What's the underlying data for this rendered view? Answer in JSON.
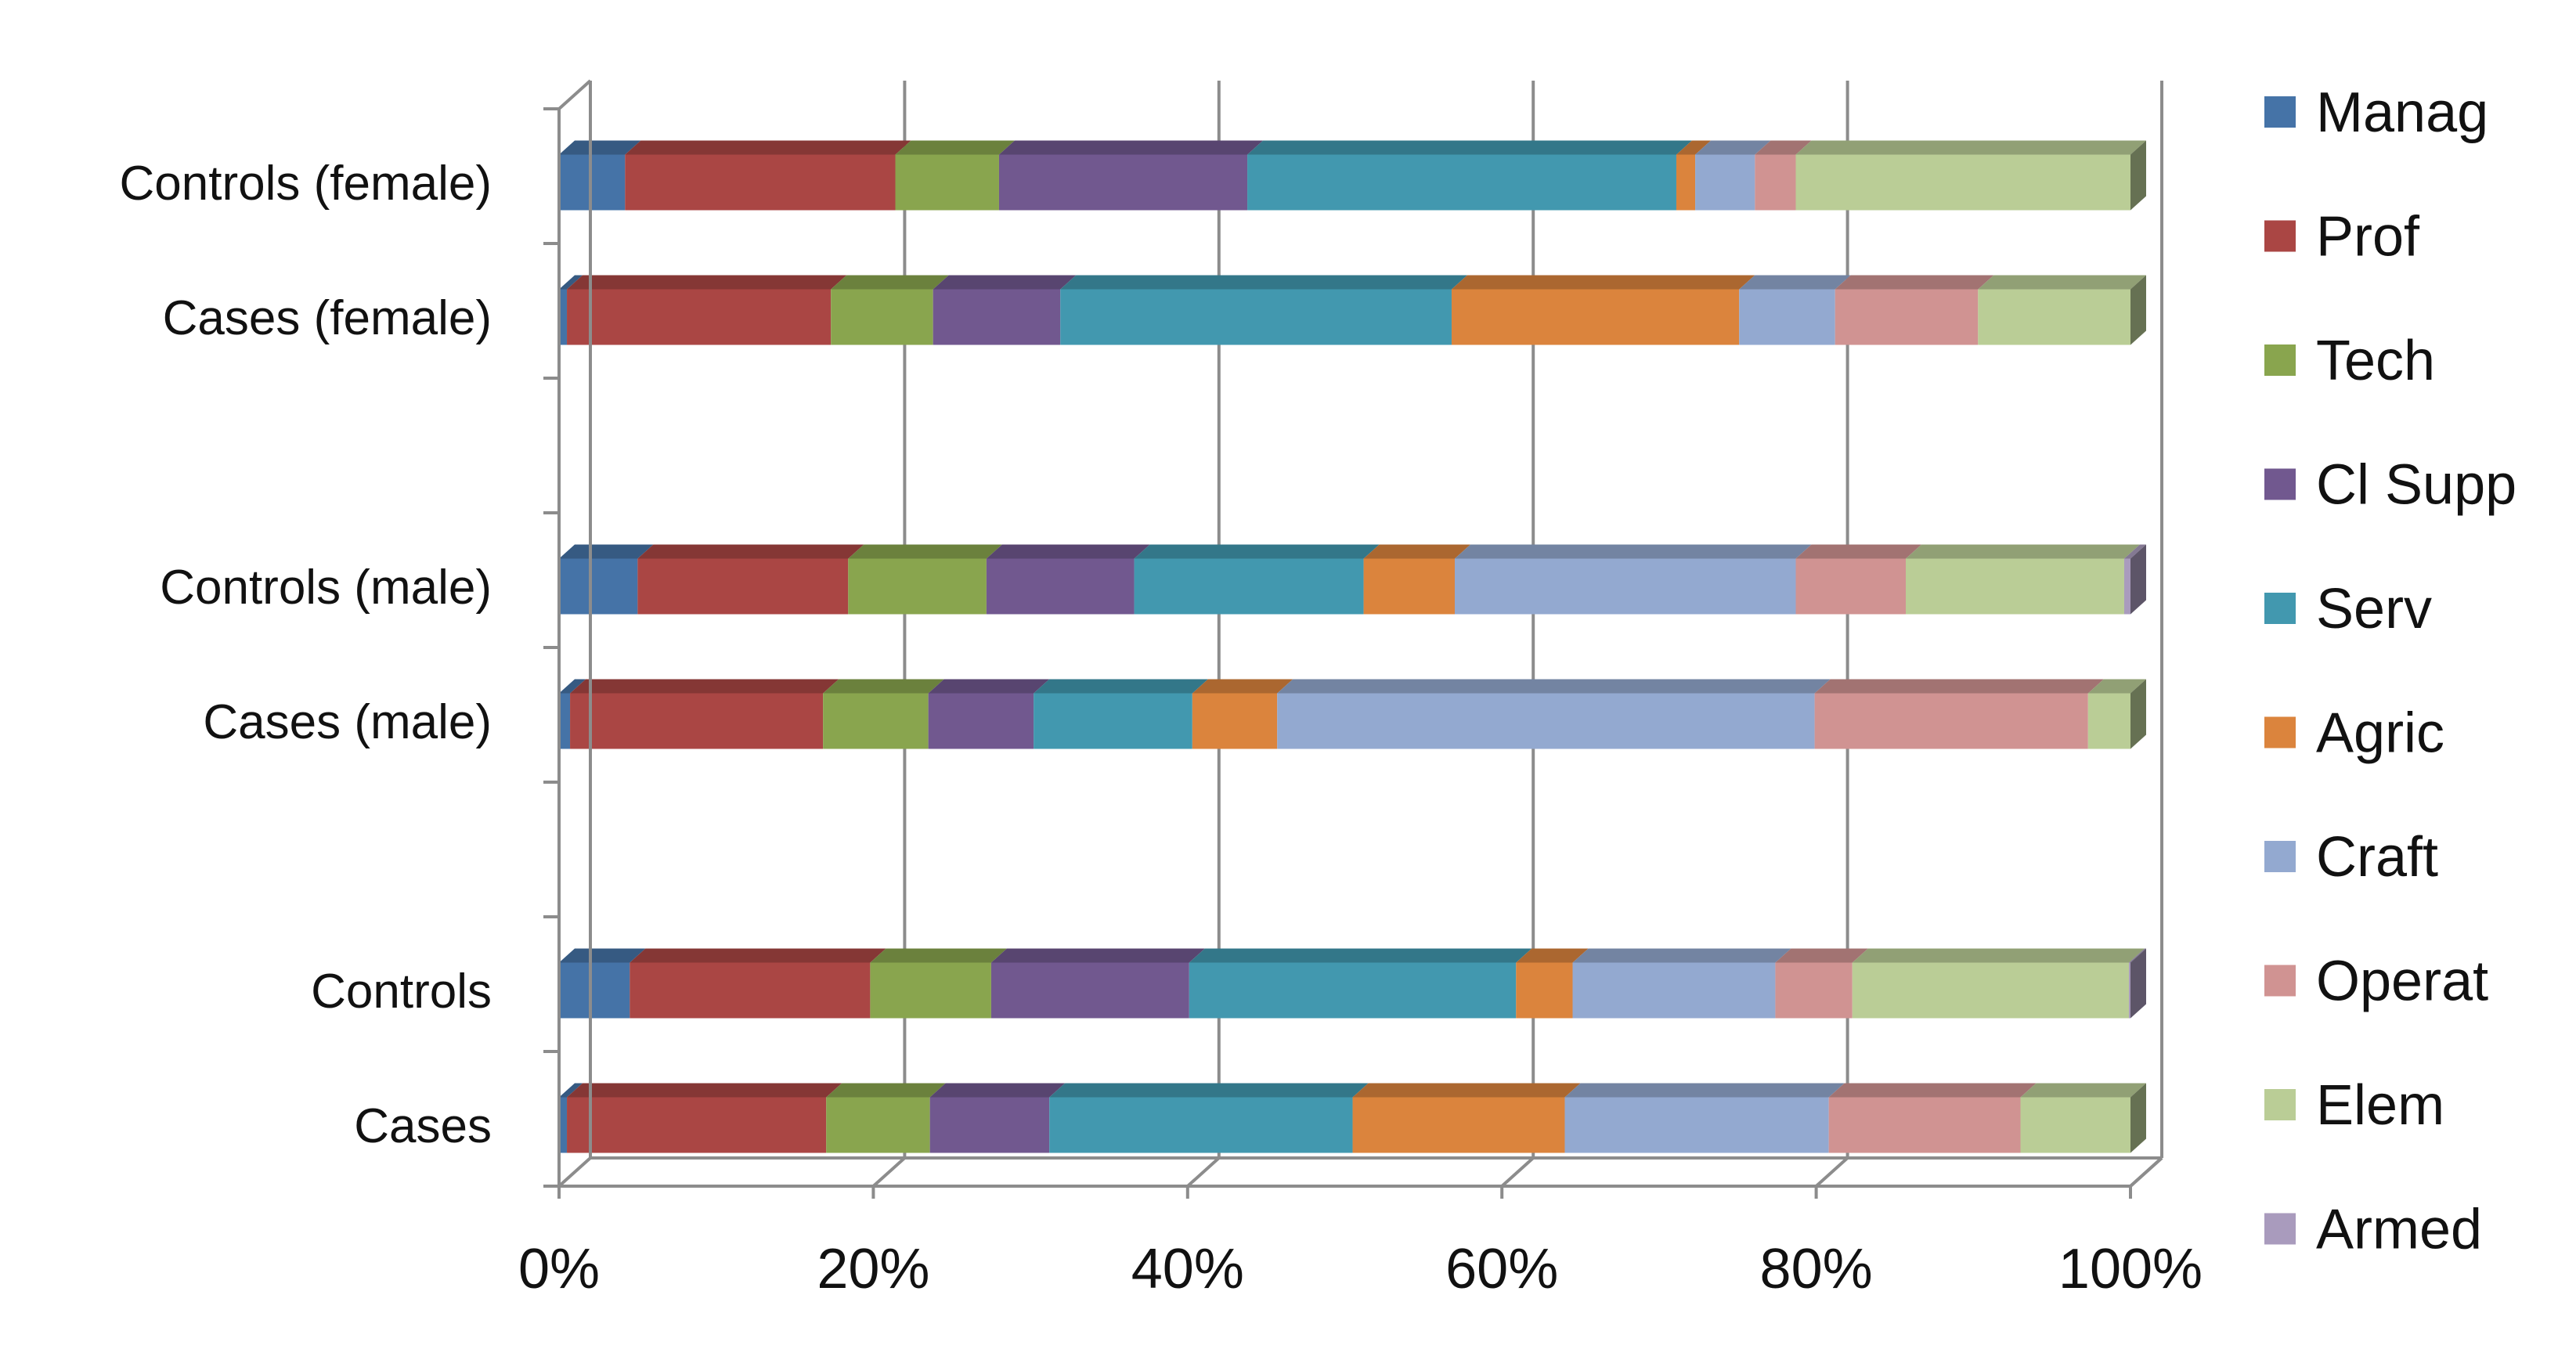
{
  "chart_data": {
    "type": "bar",
    "orientation": "horizontal",
    "stacked": "100%",
    "style": "3d",
    "categories": [
      "Controls (female)",
      "Cases (female)",
      "",
      "Controls (male)",
      "Cases (male)",
      "",
      "Controls",
      "Cases"
    ],
    "x_ticks": [
      "0%",
      "20%",
      "40%",
      "60%",
      "80%",
      "100%"
    ],
    "xlim": [
      0,
      100
    ],
    "grid": true,
    "legend_position": "right",
    "series": [
      {
        "name": "Manag",
        "color": "#4573A7",
        "values": [
          4.2,
          0.5,
          null,
          5.0,
          0.7,
          null,
          4.5,
          0.5
        ]
      },
      {
        "name": "Prof",
        "color": "#AA4644",
        "values": [
          17.2,
          16.8,
          null,
          13.4,
          16.1,
          null,
          15.3,
          16.5
        ]
      },
      {
        "name": "Tech",
        "color": "#89A54E",
        "values": [
          6.6,
          6.5,
          null,
          8.8,
          6.7,
          null,
          7.7,
          6.6
        ]
      },
      {
        "name": "Cl Supp",
        "color": "#71588F",
        "values": [
          15.8,
          8.1,
          null,
          9.4,
          6.7,
          null,
          12.6,
          7.6
        ]
      },
      {
        "name": "Serv",
        "color": "#4298AF",
        "values": [
          27.3,
          24.9,
          null,
          14.6,
          10.1,
          null,
          20.8,
          19.3
        ]
      },
      {
        "name": "Agric",
        "color": "#DB843D",
        "values": [
          1.2,
          18.3,
          null,
          5.8,
          5.4,
          null,
          3.6,
          13.5
        ]
      },
      {
        "name": "Craft",
        "color": "#93A9D0",
        "values": [
          3.8,
          6.1,
          null,
          21.7,
          34.2,
          null,
          12.9,
          16.8
        ]
      },
      {
        "name": "Operat",
        "color": "#D09392",
        "values": [
          2.6,
          9.1,
          null,
          7.0,
          17.4,
          null,
          4.9,
          12.2
        ]
      },
      {
        "name": "Elem",
        "color": "#BACD96",
        "values": [
          21.3,
          9.7,
          null,
          13.9,
          2.7,
          null,
          17.6,
          7.0
        ]
      },
      {
        "name": "Armed",
        "color": "#A99BBD",
        "values": [
          0,
          0,
          null,
          0.4,
          0,
          null,
          0.1,
          0
        ]
      }
    ]
  }
}
